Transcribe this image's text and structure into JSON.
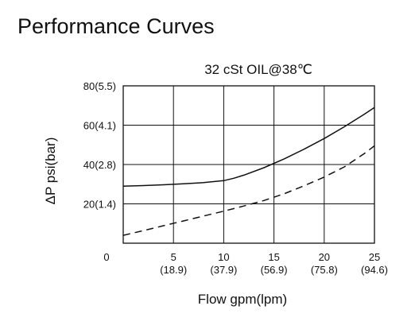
{
  "page": {
    "title": "Performance Curves"
  },
  "chart_data": {
    "type": "line",
    "title": "32 cSt OIL@38℃",
    "xlabel": "Flow gpm(lpm)",
    "ylabel": "ΔP psi(bar)",
    "xlim": [
      0,
      25
    ],
    "ylim": [
      0,
      80
    ],
    "grid": true,
    "x_ticks": [
      {
        "value": 0,
        "label": "0",
        "sub": ""
      },
      {
        "value": 5,
        "label": "5",
        "sub": "(18.9)"
      },
      {
        "value": 10,
        "label": "10",
        "sub": "(37.9)"
      },
      {
        "value": 15,
        "label": "15",
        "sub": "(56.9)"
      },
      {
        "value": 20,
        "label": "20",
        "sub": "(75.8)"
      },
      {
        "value": 25,
        "label": "25",
        "sub": "(94.6)"
      }
    ],
    "y_ticks": [
      {
        "value": 20,
        "label": "20(1.4)"
      },
      {
        "value": 40,
        "label": "40(2.8)"
      },
      {
        "value": 60,
        "label": "60(4.1)"
      },
      {
        "value": 80,
        "label": "80(5.5)"
      }
    ],
    "series": [
      {
        "style": "solid",
        "color": "#111111",
        "x": [
          0,
          2,
          4,
          6,
          8,
          10,
          11,
          12,
          14,
          16,
          18,
          20,
          22,
          24,
          25
        ],
        "y": [
          29,
          29.3,
          29.7,
          30.2,
          30.8,
          31.8,
          33,
          34.6,
          38.4,
          42.8,
          47.8,
          53.2,
          59.2,
          65.6,
          69
        ]
      },
      {
        "style": "dashed",
        "color": "#111111",
        "x": [
          0,
          2,
          4,
          6,
          8,
          10,
          12,
          14,
          16,
          18,
          20,
          22,
          24,
          25
        ],
        "y": [
          4,
          6.4,
          8.9,
          11.3,
          13.8,
          16.3,
          18.9,
          21.7,
          25.1,
          29.2,
          33.6,
          38.8,
          45.6,
          49.5
        ]
      }
    ]
  }
}
